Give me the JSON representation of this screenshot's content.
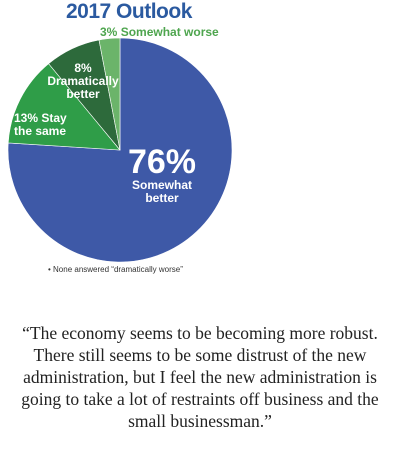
{
  "chart_data": {
    "type": "pie",
    "title": "2017 Outlook",
    "categories": [
      "Somewhat better",
      "Stay the same",
      "Dramatically better",
      "Somewhat worse"
    ],
    "values": [
      76,
      13,
      8,
      3
    ],
    "value_labels": [
      "76%",
      "13%",
      "8%",
      "3%"
    ],
    "colors": [
      "#3e59a7",
      "#2f9d48",
      "#2d6a3b",
      "#6bb46a"
    ],
    "footnote": "• None answered “dramatically worse”"
  },
  "quote": "“The economy seems to be becoming more robust. There still seems to be some distrust of the new administration, but I feel the new administration is going to take a lot of restraints off business and the small businessman.”"
}
